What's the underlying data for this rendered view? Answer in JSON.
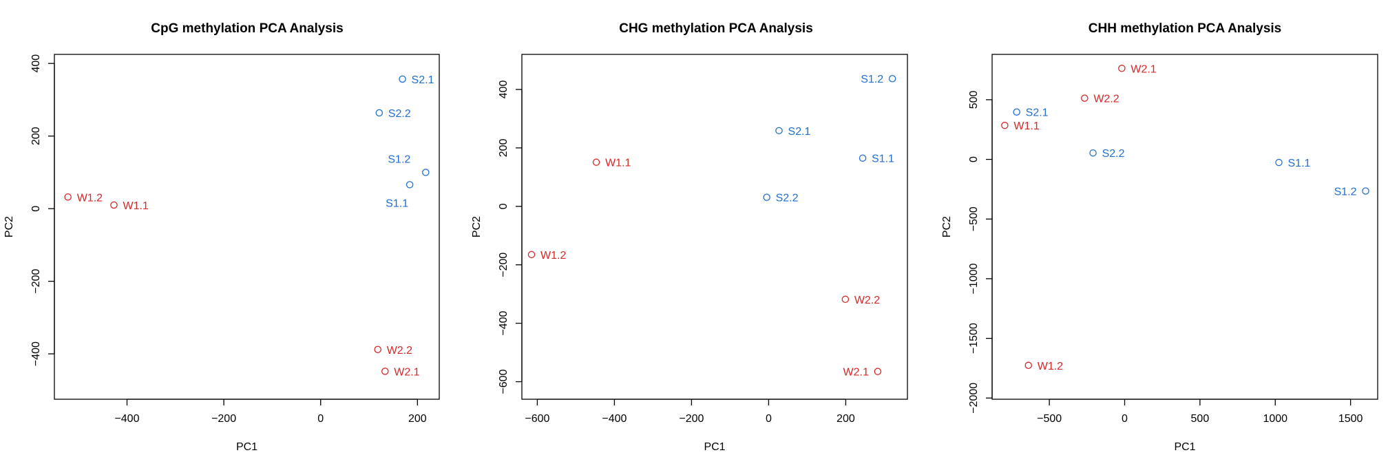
{
  "colors": {
    "W": "#d62728",
    "S": "#1f6fd1",
    "axis": "#000000"
  },
  "chart_data": [
    {
      "type": "scatter",
      "title": "CpG methylation PCA Analysis",
      "xlabel": "PC1",
      "ylabel": "PC2",
      "xlim": [
        -550,
        245
      ],
      "ylim": [
        -525,
        425
      ],
      "xticks": [
        -400,
        -200,
        0,
        200
      ],
      "xtick_labels": [
        "−400",
        "−200",
        "0",
        "200"
      ],
      "yticks": [
        -400,
        -200,
        0,
        200,
        400
      ],
      "ytick_labels": [
        "−400",
        "−200",
        "0",
        "200",
        "400"
      ],
      "points": [
        {
          "label": "W1.2",
          "group": "W",
          "x": -522,
          "y": 32,
          "label_pos": "right"
        },
        {
          "label": "W1.1",
          "group": "W",
          "x": -427,
          "y": 10,
          "label_pos": "right"
        },
        {
          "label": "S2.1",
          "group": "S",
          "x": 169,
          "y": 357,
          "label_pos": "right"
        },
        {
          "label": "S2.2",
          "group": "S",
          "x": 121,
          "y": 264,
          "label_pos": "right"
        },
        {
          "label": "S1.2",
          "group": "S",
          "x": 217,
          "y": 100,
          "label_pos": "upleft"
        },
        {
          "label": "S1.1",
          "group": "S",
          "x": 184,
          "y": 66,
          "label_pos": "downleft"
        },
        {
          "label": "W2.2",
          "group": "W",
          "x": 118,
          "y": -388,
          "label_pos": "right"
        },
        {
          "label": "W2.1",
          "group": "W",
          "x": 133,
          "y": -448,
          "label_pos": "right"
        }
      ]
    },
    {
      "type": "scatter",
      "title": "CHG methylation PCA Analysis",
      "xlabel": "PC1",
      "ylabel": "PC2",
      "xlim": [
        -640,
        360
      ],
      "ylim": [
        -660,
        520
      ],
      "xticks": [
        -600,
        -400,
        -200,
        0,
        200
      ],
      "xtick_labels": [
        "−600",
        "−400",
        "−200",
        "0",
        "200"
      ],
      "yticks": [
        -600,
        -400,
        -200,
        0,
        200,
        400
      ],
      "ytick_labels": [
        "−600",
        "−400",
        "−200",
        "0",
        "200",
        "400"
      ],
      "points": [
        {
          "label": "S1.2",
          "group": "S",
          "x": 321,
          "y": 437,
          "label_pos": "left"
        },
        {
          "label": "S2.1",
          "group": "S",
          "x": 27,
          "y": 259,
          "label_pos": "right"
        },
        {
          "label": "S1.1",
          "group": "S",
          "x": 244,
          "y": 165,
          "label_pos": "right"
        },
        {
          "label": "W1.1",
          "group": "W",
          "x": -447,
          "y": 151,
          "label_pos": "right"
        },
        {
          "label": "S2.2",
          "group": "S",
          "x": -5,
          "y": 31,
          "label_pos": "right"
        },
        {
          "label": "W1.2",
          "group": "W",
          "x": -615,
          "y": -165,
          "label_pos": "right"
        },
        {
          "label": "W2.2",
          "group": "W",
          "x": 199,
          "y": -318,
          "label_pos": "right"
        },
        {
          "label": "W2.1",
          "group": "W",
          "x": 283,
          "y": -565,
          "label_pos": "left"
        }
      ]
    },
    {
      "type": "scatter",
      "title": "CHH methylation PCA Analysis",
      "xlabel": "PC1",
      "ylabel": "PC2",
      "xlim": [
        -880,
        1680
      ],
      "ylim": [
        -2010,
        880
      ],
      "xticks": [
        -500,
        0,
        500,
        1000,
        1500
      ],
      "xtick_labels": [
        "−500",
        "0",
        "500",
        "1000",
        "1500"
      ],
      "yticks": [
        -2000,
        -1500,
        -1000,
        -500,
        0,
        500
      ],
      "ytick_labels": [
        "−2000",
        "−1500",
        "−1000",
        "−500",
        "0",
        "500"
      ],
      "points": [
        {
          "label": "W2.1",
          "group": "W",
          "x": -19,
          "y": 763,
          "label_pos": "right"
        },
        {
          "label": "W2.2",
          "group": "W",
          "x": -266,
          "y": 513,
          "label_pos": "right"
        },
        {
          "label": "S2.1",
          "group": "S",
          "x": -717,
          "y": 397,
          "label_pos": "right"
        },
        {
          "label": "W1.1",
          "group": "W",
          "x": -796,
          "y": 285,
          "label_pos": "right"
        },
        {
          "label": "S2.2",
          "group": "S",
          "x": -210,
          "y": 54,
          "label_pos": "right"
        },
        {
          "label": "S1.1",
          "group": "S",
          "x": 1024,
          "y": -26,
          "label_pos": "right"
        },
        {
          "label": "S1.2",
          "group": "S",
          "x": 1600,
          "y": -265,
          "label_pos": "left"
        },
        {
          "label": "W1.2",
          "group": "W",
          "x": -639,
          "y": -1726,
          "label_pos": "right"
        }
      ]
    }
  ]
}
